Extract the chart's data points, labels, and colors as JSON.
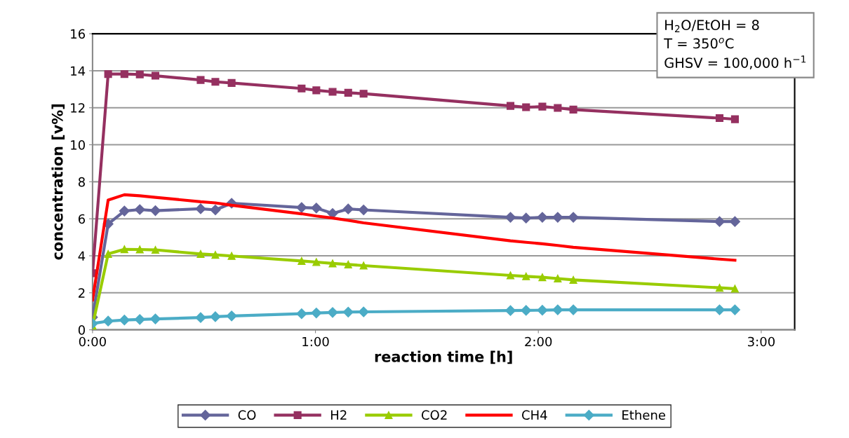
{
  "chart_data": {
    "type": "line",
    "xlabel": "reaction time [h]",
    "ylabel": "concentration [v%]",
    "x": [
      0,
      0.07,
      0.143,
      0.212,
      0.282,
      0.485,
      0.551,
      0.624,
      0.938,
      1.004,
      1.077,
      1.147,
      1.216,
      1.875,
      1.945,
      2.018,
      2.087,
      2.157,
      2.813,
      2.882
    ],
    "series": [
      {
        "name": "CO",
        "color": "#64659a",
        "marker": "diamond",
        "values": [
          0.68,
          5.72,
          6.42,
          6.5,
          6.44,
          6.54,
          6.48,
          6.84,
          6.61,
          6.58,
          6.29,
          6.53,
          6.48,
          6.08,
          6.04,
          6.08,
          6.08,
          6.08,
          5.85,
          5.85
        ]
      },
      {
        "name": "H2",
        "color": "#953060",
        "marker": "square",
        "values": [
          3.06,
          13.82,
          13.82,
          13.8,
          13.73,
          13.5,
          13.4,
          13.34,
          13.04,
          12.94,
          12.86,
          12.81,
          12.76,
          12.1,
          12.03,
          12.06,
          11.99,
          11.9,
          11.44,
          11.38
        ]
      },
      {
        "name": "CO2",
        "color": "#99cc00",
        "marker": "triangle",
        "values": [
          0.22,
          4.1,
          4.35,
          4.34,
          4.32,
          4.1,
          4.05,
          3.99,
          3.72,
          3.66,
          3.59,
          3.53,
          3.47,
          2.94,
          2.89,
          2.84,
          2.77,
          2.7,
          2.27,
          2.22
        ]
      },
      {
        "name": "CH4",
        "color": "#ff0000",
        "marker": "none",
        "values": [
          1.61,
          7.01,
          7.3,
          7.24,
          7.16,
          6.92,
          6.86,
          6.73,
          6.27,
          6.15,
          6.04,
          5.91,
          5.78,
          4.81,
          4.73,
          4.65,
          4.56,
          4.46,
          3.82,
          3.76
        ]
      },
      {
        "name": "Ethene",
        "color": "#4bacc6",
        "marker": "diamond",
        "values": [
          0.34,
          0.47,
          0.53,
          0.56,
          0.59,
          0.66,
          0.71,
          0.75,
          0.87,
          0.91,
          0.94,
          0.96,
          0.97,
          1.04,
          1.05,
          1.06,
          1.08,
          1.08,
          1.08,
          1.08
        ]
      }
    ],
    "xlim": [
      0,
      3.15
    ],
    "ylim": [
      0,
      16
    ],
    "xticks": [
      {
        "value": 0,
        "label": "0:00"
      },
      {
        "value": 1,
        "label": "1:00"
      },
      {
        "value": 2,
        "label": "2:00"
      },
      {
        "value": 3,
        "label": "3:00"
      }
    ],
    "yticks": [
      0,
      2,
      4,
      6,
      8,
      10,
      12,
      14,
      16
    ],
    "grid": "y",
    "legend": "bottom",
    "line_style": "solid",
    "annotations": [
      "H$_{2}$O/EtOH = 8\nT = 350$^{o}$C\nGHSV = 100,000 h$^{−1}$"
    ]
  }
}
